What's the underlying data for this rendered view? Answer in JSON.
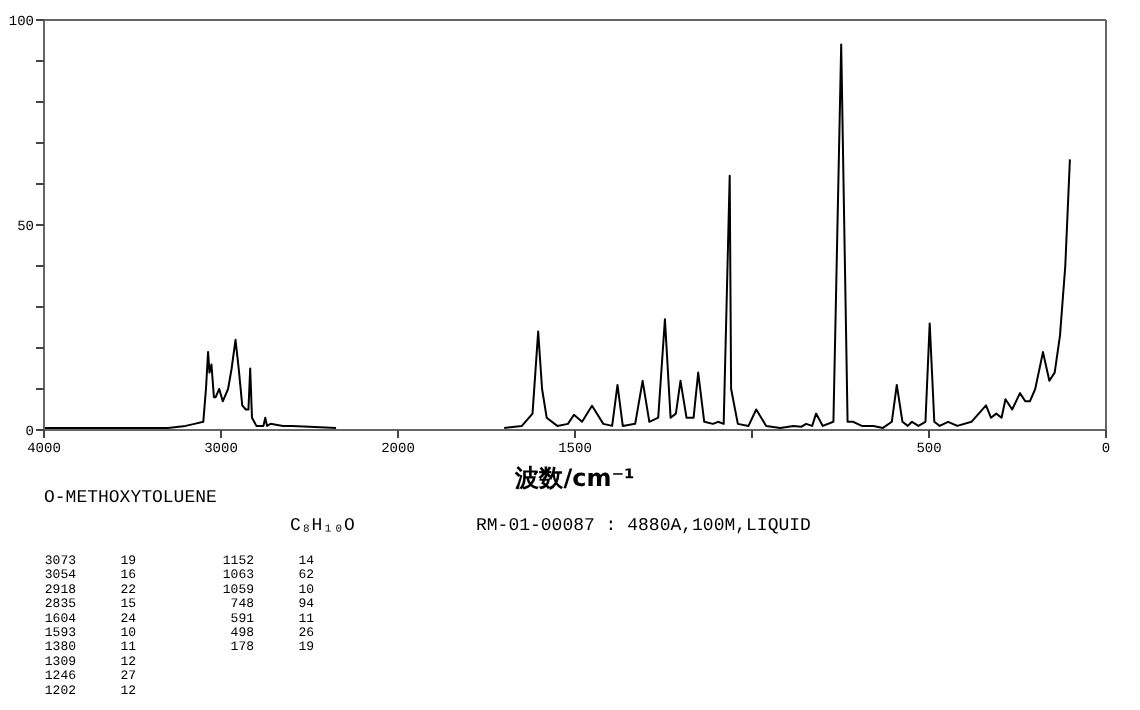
{
  "chart_data": [
    {
      "type": "line",
      "title": "O-METHOXYTOLUENE",
      "subtitle": "C₈H₁₀O",
      "xlabel": "波数/cm⁻¹",
      "annotations": [
        "RM-01-00087 : 4880A,100M,LIQUID",
        "3073 19",
        "3054 16",
        "2918 22",
        "2835 15",
        "1604 24",
        "1593 10",
        "1380 11",
        "1309 12",
        "1246 27",
        "1202 12",
        "1152 14",
        "1063 62",
        "1059 10",
        "748 94",
        "591 11",
        "498 26",
        "178 19"
      ],
      "xlim": [
        4000,
        2000
      ],
      "ylim": [
        0,
        100
      ],
      "xticks": [
        4000,
        3000,
        2000
      ],
      "yticks": [
        0,
        {
          "value": 10,
          "label": null
        },
        {
          "value": 20,
          "label": null
        },
        {
          "value": 30,
          "label": null
        },
        {
          "value": 40,
          "label": null
        },
        50,
        {
          "value": 60,
          "label": null
        },
        {
          "value": 70,
          "label": null
        },
        {
          "value": 80,
          "label": null
        },
        {
          "value": 90,
          "label": null
        },
        100
      ],
      "series": [
        {
          "color": "#000000",
          "x": [
            4000,
            3300,
            3200,
            3150,
            3100,
            3085,
            3073,
            3065,
            3054,
            3040,
            3030,
            3010,
            2990,
            2960,
            2940,
            2918,
            2900,
            2880,
            2860,
            2845,
            2835,
            2825,
            2800,
            2760,
            2750,
            2740,
            2720,
            2650,
            2600,
            2500,
            2350
          ],
          "values": [
            0.5,
            0.5,
            1,
            1.5,
            2,
            10,
            19,
            14,
            16,
            8,
            8,
            10,
            7,
            10,
            15,
            22,
            15,
            6,
            5,
            5,
            15,
            3,
            1,
            1,
            3,
            1,
            1.5,
            1,
            1,
            0.8,
            0.5
          ]
        }
      ]
    },
    {
      "type": "line",
      "xlim": [
        2000,
        0
      ],
      "ylim": [
        0,
        100
      ],
      "tick_labels": "x",
      "xticks": [
        1500,
        {
          "value": 1000,
          "label": null
        },
        500,
        0
      ],
      "series": [
        {
          "color": "#000000",
          "x": [
            1700,
            1650,
            1620,
            1604,
            1593,
            1580,
            1550,
            1520,
            1503,
            1480,
            1452,
            1420,
            1395,
            1380,
            1365,
            1330,
            1309,
            1290,
            1265,
            1246,
            1230,
            1215,
            1202,
            1185,
            1165,
            1152,
            1135,
            1110,
            1096,
            1080,
            1063,
            1059,
            1040,
            1010,
            988,
            960,
            920,
            883,
            860,
            847,
            830,
            819,
            800,
            770,
            748,
            730,
            714,
            690,
            657,
            630,
            605,
            591,
            575,
            560,
            548,
            530,
            510,
            498,
            485,
            470,
            446,
            420,
            380,
            339,
            325,
            310,
            295,
            284,
            265,
            243,
            228,
            215,
            200,
            178,
            160,
            145,
            130,
            115,
            102
          ],
          "values": [
            0.5,
            1,
            4,
            24,
            10,
            3,
            1,
            1.5,
            3.7,
            2,
            5.9,
            1.5,
            1,
            11,
            1,
            1.5,
            12,
            2,
            3,
            27,
            3,
            4,
            12,
            3,
            3,
            14,
            2,
            1.5,
            2,
            1.5,
            62,
            10,
            1.5,
            1,
            5,
            1,
            0.5,
            1,
            0.8,
            1.5,
            1,
            4,
            1,
            2,
            94,
            2,
            2,
            1,
            1,
            0.5,
            2,
            11,
            2,
            1,
            2,
            1,
            2,
            26,
            2,
            1,
            2,
            1,
            2,
            6,
            3,
            4,
            3,
            7.5,
            5,
            9,
            7,
            7,
            10,
            19,
            12,
            14,
            23,
            40,
            66
          ]
        }
      ]
    }
  ]
}
